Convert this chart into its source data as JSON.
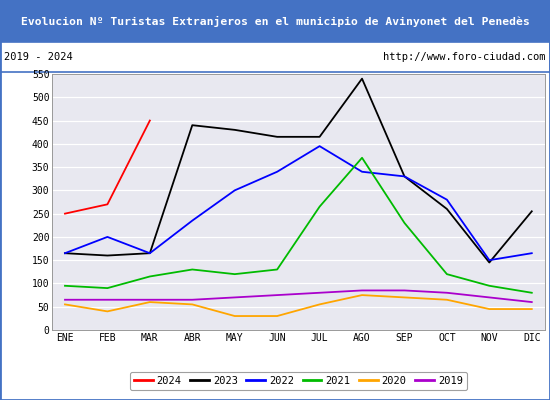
{
  "title": "Evolucion Nº Turistas Extranjeros en el municipio de Avinyonet del Penedès",
  "subtitle_left": "2019 - 2024",
  "subtitle_right": "http://www.foro-ciudad.com",
  "months": [
    "ENE",
    "FEB",
    "MAR",
    "ABR",
    "MAY",
    "JUN",
    "JUL",
    "AGO",
    "SEP",
    "OCT",
    "NOV",
    "DIC"
  ],
  "ylim": [
    0,
    550
  ],
  "yticks": [
    0,
    50,
    100,
    150,
    200,
    250,
    300,
    350,
    400,
    450,
    500,
    550
  ],
  "series": {
    "2024": {
      "color": "#ff0000",
      "data": [
        250,
        270,
        450,
        null,
        null,
        null,
        null,
        null,
        null,
        null,
        null,
        null
      ]
    },
    "2023": {
      "color": "#000000",
      "data": [
        165,
        160,
        165,
        440,
        430,
        415,
        415,
        540,
        330,
        260,
        145,
        255
      ]
    },
    "2022": {
      "color": "#0000ff",
      "data": [
        165,
        200,
        165,
        235,
        300,
        340,
        395,
        340,
        330,
        280,
        150,
        165
      ]
    },
    "2021": {
      "color": "#00bb00",
      "data": [
        95,
        90,
        115,
        130,
        120,
        130,
        265,
        370,
        230,
        120,
        95,
        80
      ]
    },
    "2020": {
      "color": "#ffa500",
      "data": [
        55,
        40,
        60,
        55,
        30,
        30,
        55,
        75,
        70,
        65,
        45,
        45
      ]
    },
    "2019": {
      "color": "#aa00cc",
      "data": [
        65,
        65,
        65,
        65,
        70,
        75,
        80,
        85,
        85,
        80,
        70,
        60
      ]
    }
  },
  "title_bgcolor": "#4472c4",
  "title_fgcolor": "#ffffff",
  "plot_bgcolor": "#e8e8f0",
  "grid_color": "#ffffff",
  "border_color": "#4472c4",
  "subtitle_bgcolor": "#ffffff",
  "legend_order": [
    "2024",
    "2023",
    "2022",
    "2021",
    "2020",
    "2019"
  ]
}
